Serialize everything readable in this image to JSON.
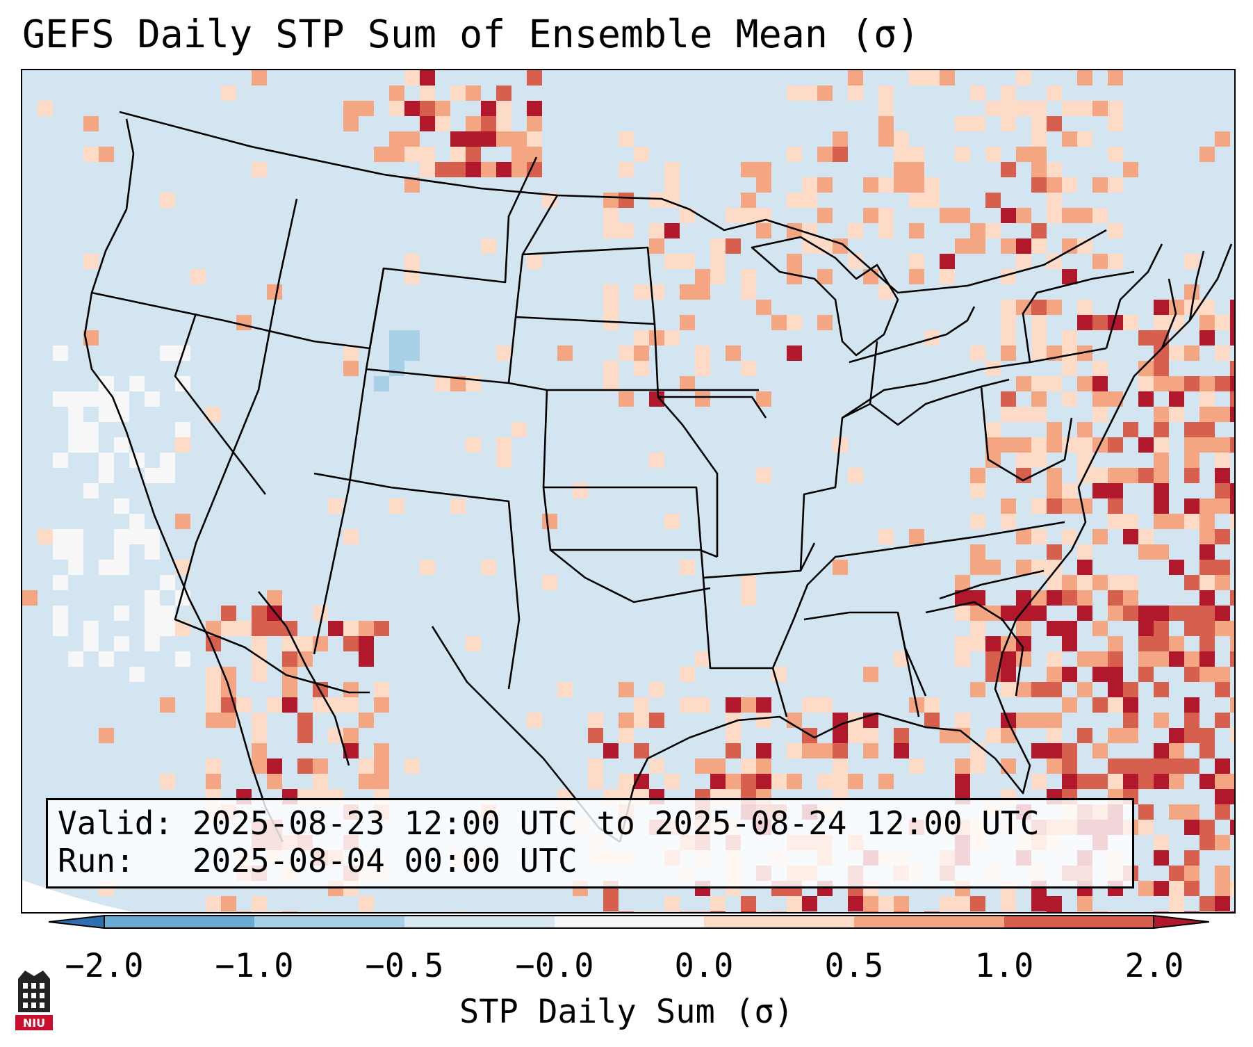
{
  "title": "GEFS Daily STP Sum of Ensemble Mean (σ)",
  "info": {
    "valid_line": "Valid: 2025-08-23 12:00 UTC to 2025-08-24 12:00 UTC",
    "run_line": "Run:   2025-08-04 00:00 UTC"
  },
  "colorbar": {
    "label": "STP Daily Sum (σ)",
    "ticks": [
      "−2.0",
      "−1.0",
      "−0.5",
      "−0.0",
      "0.0",
      "0.5",
      "1.0",
      "2.0"
    ],
    "colors": [
      "#2f6fb0",
      "#6aabd4",
      "#a8d0e6",
      "#d6e7f1",
      "#f7f7f7",
      "#fddbc7",
      "#f4a582",
      "#d6604d",
      "#b2182b"
    ],
    "extend": "both"
  },
  "map": {
    "background_color": "#d3e5f0",
    "region": "Contiguous United States and surrounding ocean"
  },
  "logo": {
    "text": "NIU",
    "color": "#c8102e"
  }
}
